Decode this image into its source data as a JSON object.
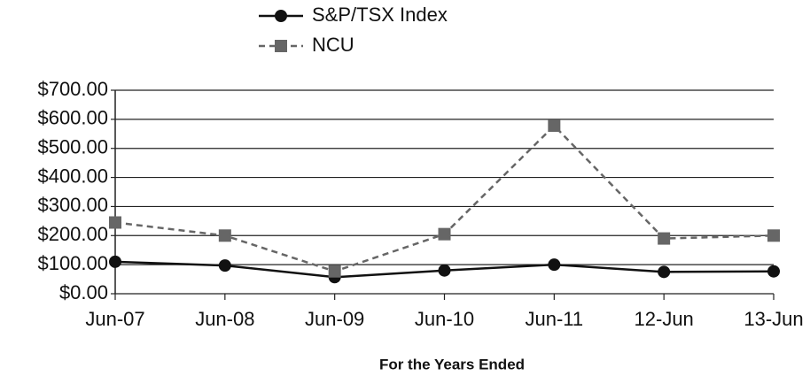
{
  "chart_data": {
    "type": "line",
    "x_label": "For the Years  Ended",
    "categories": [
      "Jun-07",
      "Jun-08",
      "Jun-09",
      "Jun-10",
      "Jun-11",
      "12-Jun",
      "13-Jun"
    ],
    "series": [
      {
        "name": "S&P/TSX Index",
        "color": "#111111",
        "marker": "circle",
        "dash": "solid",
        "values": [
          110,
          97,
          57,
          80,
          100,
          75,
          77
        ]
      },
      {
        "name": "NCU",
        "color": "#666666",
        "marker": "square",
        "dash": "dashed",
        "values": [
          245,
          200,
          77,
          205,
          578,
          190,
          200
        ]
      }
    ],
    "ylim": [
      0,
      700
    ],
    "yticks": [
      {
        "value": 0,
        "label": "$0.00"
      },
      {
        "value": 100,
        "label": "$100.00"
      },
      {
        "value": 200,
        "label": "$200.00"
      },
      {
        "value": 300,
        "label": "$300.00"
      },
      {
        "value": 400,
        "label": "$400.00"
      },
      {
        "value": 500,
        "label": "$500.00"
      },
      {
        "value": 600,
        "label": "$600.00"
      },
      {
        "value": 700,
        "label": "$700.00"
      }
    ],
    "grid": true,
    "legend": "top"
  }
}
